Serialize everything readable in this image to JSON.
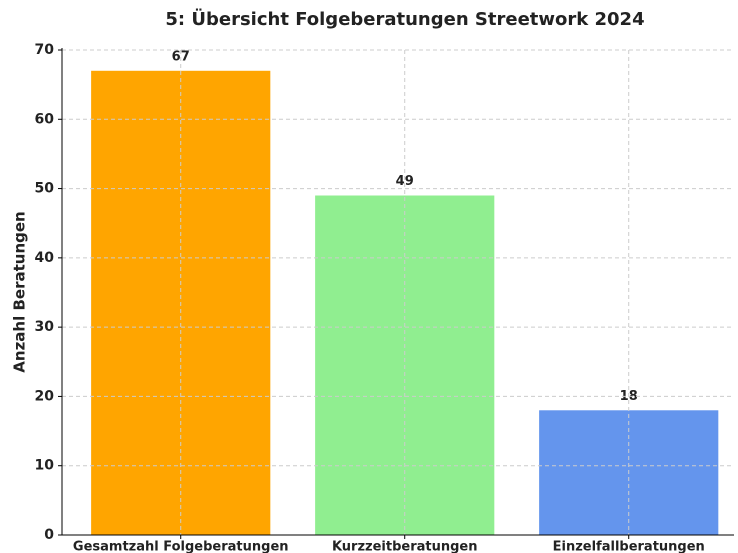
{
  "chart_data": {
    "type": "bar",
    "title": "5: Übersicht Folgeberatungen Streetwork 2024",
    "ylabel": "Anzahl Beratungen",
    "categories": [
      "Gesamtzahl Folgeberatungen",
      "Kurzzeitberatungen",
      "Einzelfallberatungen"
    ],
    "values": [
      67,
      49,
      18
    ],
    "colors": [
      "#ffa500",
      "#90ee90",
      "#6495ed"
    ],
    "ylim": [
      0,
      70
    ],
    "yticks": [
      0,
      10,
      20,
      30,
      40,
      50,
      60,
      70
    ],
    "grid": true
  }
}
